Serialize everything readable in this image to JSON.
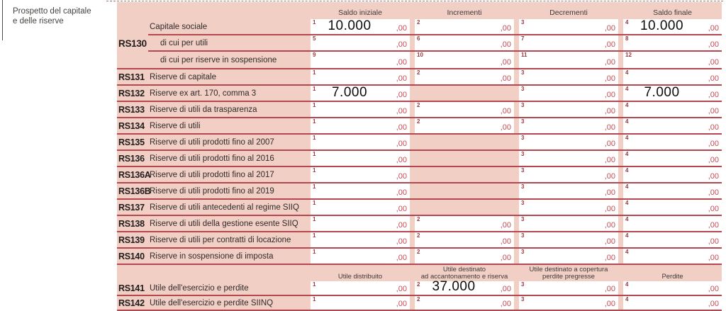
{
  "section": {
    "label_line1": "Prospetto del capitale",
    "label_line2": "e delle riserve"
  },
  "cents": ",00",
  "colors": {
    "form_pink": "#f2cfc5",
    "line_red": "#b4474f",
    "cents_red": "#c14b54",
    "sup_maroon": "#993840",
    "value_black": "#0c0c0c"
  },
  "header_top": {
    "columns": [
      "Saldo iniziale",
      "Incrementi",
      "Decrementi",
      "Saldo finale"
    ]
  },
  "header_bottom": {
    "columns": [
      {
        "lines": [
          "Utile distribuito"
        ]
      },
      {
        "lines": [
          "Utile destinato",
          "ad accantonamento e riserva"
        ]
      },
      {
        "lines": [
          "Utile destinato a copertura",
          "perdite pregresse"
        ]
      },
      {
        "lines": [
          "Perdite"
        ]
      }
    ]
  },
  "rs130_block": {
    "code": "RS130",
    "subrows": [
      {
        "label": "Capitale sociale",
        "indent": false,
        "fields": [
          {
            "n": "1",
            "v": "10.000"
          },
          {
            "n": "2"
          },
          {
            "n": "3"
          },
          {
            "n": "4",
            "v": "10.000"
          }
        ]
      },
      {
        "label": "di cui per utili",
        "indent": true,
        "fields": [
          {
            "n": "5"
          },
          {
            "n": "6"
          },
          {
            "n": "7"
          },
          {
            "n": "8"
          }
        ]
      },
      {
        "label": "di cui per riserve in sospensione",
        "indent": true,
        "fields": [
          {
            "n": "9"
          },
          {
            "n": "10"
          },
          {
            "n": "11"
          },
          {
            "n": "12"
          }
        ]
      }
    ]
  },
  "rows_middle": [
    {
      "code": "RS131",
      "label": "Riserve di capitale",
      "fields": [
        {
          "n": "1"
        },
        {
          "n": "2"
        },
        {
          "n": "3"
        },
        {
          "n": "4"
        }
      ]
    },
    {
      "code": "RS132",
      "label": "Riserve ex art. 170, comma 3",
      "fields": [
        {
          "n": "1",
          "v": "7.000"
        },
        null,
        {
          "n": "3"
        },
        {
          "n": "4",
          "v": "7.000"
        }
      ]
    },
    {
      "code": "RS133",
      "label": "Riserve di utili da trasparenza",
      "fields": [
        {
          "n": "1"
        },
        {
          "n": "2"
        },
        {
          "n": "3"
        },
        {
          "n": "4"
        }
      ]
    },
    {
      "code": "RS134",
      "label": "Riserve di utili",
      "fields": [
        {
          "n": "1"
        },
        {
          "n": "2"
        },
        {
          "n": "3"
        },
        {
          "n": "4"
        }
      ]
    },
    {
      "code": "RS135",
      "label": "Riserve di utili prodotti fino al 2007",
      "fields": [
        {
          "n": "1"
        },
        null,
        {
          "n": "3"
        },
        {
          "n": "4"
        }
      ]
    },
    {
      "code": "RS136",
      "label": "Riserve di utili prodotti fino al 2016",
      "fields": [
        {
          "n": "1"
        },
        null,
        {
          "n": "3"
        },
        {
          "n": "4"
        }
      ]
    },
    {
      "code": "RS136A",
      "label": "Riserve di utili prodotti fino al 2017",
      "fields": [
        {
          "n": "1"
        },
        null,
        {
          "n": "3"
        },
        {
          "n": "4"
        }
      ]
    },
    {
      "code": "RS136B",
      "label": "Riserve di utili prodotti fino al 2019",
      "fields": [
        {
          "n": "1"
        },
        null,
        {
          "n": "3"
        },
        {
          "n": "4"
        }
      ]
    },
    {
      "code": "RS137",
      "label": "Riserve di utili antecedenti al regime SIIQ",
      "fields": [
        {
          "n": "1"
        },
        null,
        {
          "n": "3"
        },
        {
          "n": "4"
        }
      ]
    },
    {
      "code": "RS138",
      "label": "Riserve di utili della gestione esente SIIQ",
      "fields": [
        {
          "n": "1"
        },
        {
          "n": "2"
        },
        {
          "n": "3"
        },
        {
          "n": "4"
        }
      ]
    },
    {
      "code": "RS139",
      "label": "Riserve di utili per contratti di locazione",
      "fields": [
        {
          "n": "1"
        },
        {
          "n": "2"
        },
        {
          "n": "3"
        },
        {
          "n": "4"
        }
      ]
    },
    {
      "code": "RS140",
      "label": "Riserve in sospensione di imposta",
      "fields": [
        {
          "n": "1"
        },
        {
          "n": "2"
        },
        {
          "n": "3"
        },
        {
          "n": "4"
        }
      ]
    }
  ],
  "rows_bottom": [
    {
      "code": "RS141",
      "label": "Utile dell'esercizio e perdite",
      "fields": [
        {
          "n": "1"
        },
        {
          "n": "2",
          "v": "37.000"
        },
        {
          "n": "3"
        },
        {
          "n": "4"
        }
      ]
    },
    {
      "code": "RS142",
      "label": "Utile dell'esercizio e perdite SIINQ",
      "fields": [
        {
          "n": "1"
        },
        {
          "n": "2"
        },
        {
          "n": "3"
        },
        {
          "n": "4"
        }
      ]
    }
  ]
}
